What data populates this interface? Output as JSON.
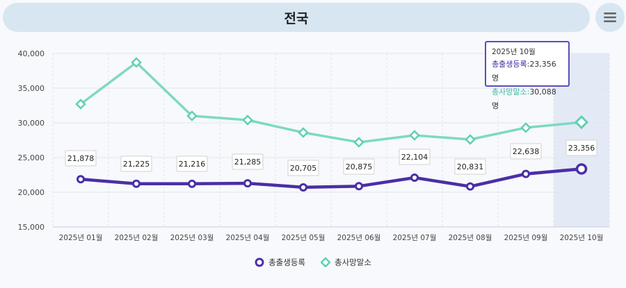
{
  "header": {
    "title": "전국"
  },
  "menu": {
    "icon": "hamburger-menu-icon"
  },
  "chart_data": {
    "type": "line",
    "categories": [
      "2025년 01월",
      "2025년 02월",
      "2025년 03월",
      "2025년 04월",
      "2025년 05월",
      "2025년 06월",
      "2025년 07월",
      "2025년 08월",
      "2025년 09월",
      "2025년 10월"
    ],
    "series": [
      {
        "name": "총출생등록",
        "color": "#4a2fa6",
        "marker": "circle",
        "values": [
          21878,
          21225,
          21216,
          21285,
          20705,
          20875,
          22104,
          20831,
          22638,
          23356
        ],
        "labels": [
          "21,878",
          "21,225",
          "21,216",
          "21,285",
          "20,705",
          "20,875",
          "22,104",
          "20,831",
          "22,638",
          "23,356"
        ]
      },
      {
        "name": "총사망말소",
        "color": "#7dd9c2",
        "marker": "diamond",
        "values": [
          32700,
          38700,
          31000,
          30400,
          28600,
          27200,
          28200,
          27600,
          29300,
          30088
        ]
      }
    ],
    "ylim": [
      15000,
      40000
    ],
    "yticks": [
      15000,
      20000,
      25000,
      30000,
      35000,
      40000
    ],
    "ytick_labels": [
      "15,000",
      "20,000",
      "25,000",
      "30,000",
      "35,000",
      "40,000"
    ],
    "highlight_index": 9,
    "legend_position": "bottom"
  },
  "tooltip": {
    "date": "2025년 10월",
    "birth_label": "총출생등록:",
    "birth_value": "23,356 명",
    "death_label": "총사망말소:",
    "death_value": "30,088 명"
  },
  "legend": {
    "birth": "총출생등록",
    "death": "총사망말소"
  }
}
